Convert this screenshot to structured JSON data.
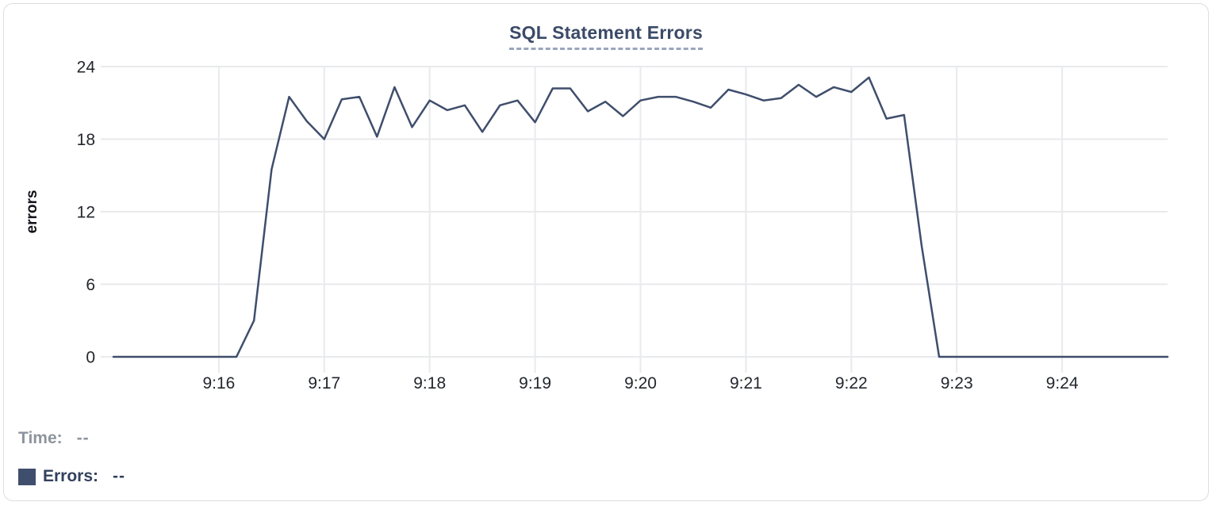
{
  "chart": {
    "title": "SQL Statement Errors",
    "y_axis_label": "errors"
  },
  "readout": {
    "time_label": "Time:",
    "time_value": "--",
    "errors_label": "Errors:",
    "errors_value": "--"
  },
  "colors": {
    "line": "#3f4e6c",
    "title": "#3b4a68",
    "legend_swatch": "#3f4e6c",
    "muted_label": "#8e949d",
    "gridline": "#e9eaec"
  },
  "chart_data": {
    "type": "line",
    "title": "SQL Statement Errors",
    "xlabel": "",
    "ylabel": "errors",
    "ylim": [
      0,
      24
    ],
    "y_ticks": [
      0,
      6,
      12,
      18,
      24
    ],
    "x_start": "9:15:00",
    "x_end": "9:25:00",
    "point_interval_seconds": 10,
    "x_tick_labels": [
      "9:16",
      "9:17",
      "9:18",
      "9:19",
      "9:20",
      "9:21",
      "9:22",
      "9:23",
      "9:24"
    ],
    "grid": true,
    "legend_position": "none",
    "series": [
      {
        "name": "Errors",
        "color": "#3f4e6c",
        "values": [
          0,
          0,
          0,
          0,
          0,
          0,
          0,
          0,
          3,
          15.5,
          21.5,
          19.5,
          18,
          21.3,
          21.5,
          18.2,
          22.3,
          19,
          21.2,
          20.4,
          20.8,
          18.6,
          20.8,
          21.2,
          19.4,
          22.2,
          22.2,
          20.3,
          21.1,
          19.9,
          21.2,
          21.5,
          21.5,
          21.1,
          20.6,
          22.1,
          21.7,
          21.2,
          21.4,
          22.5,
          21.5,
          22.3,
          21.9,
          23.1,
          19.7,
          20,
          9.2,
          0,
          0,
          0,
          0,
          0,
          0,
          0,
          0,
          0,
          0,
          0,
          0,
          0,
          0
        ]
      }
    ]
  }
}
